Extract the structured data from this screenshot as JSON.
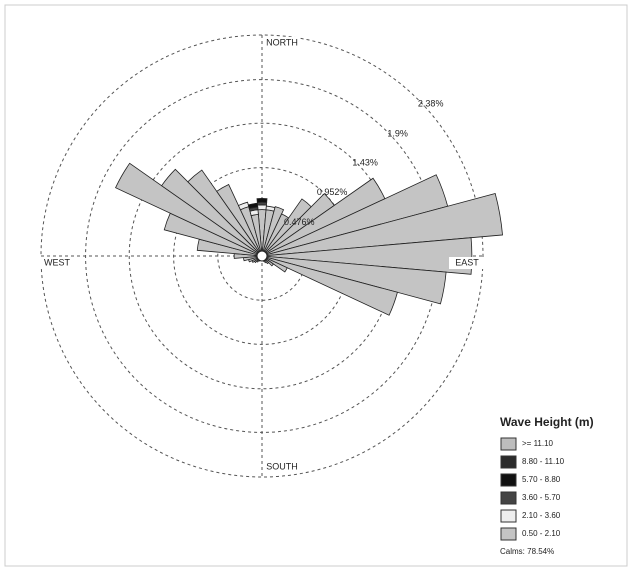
{
  "chart_data": {
    "type": "rose",
    "direction_labels": {
      "north": "NORTH",
      "east": "EAST",
      "south": "SOUTH",
      "west": "WEST"
    },
    "directions": [
      0,
      10,
      20,
      30,
      40,
      50,
      60,
      70,
      80,
      90,
      100,
      110,
      120,
      130,
      140,
      150,
      160,
      170,
      180,
      190,
      200,
      210,
      220,
      230,
      240,
      250,
      260,
      270,
      280,
      290,
      300,
      310,
      320,
      330,
      340,
      350
    ],
    "rlim": [
      0,
      2.38
    ],
    "rticks": [
      {
        "value": 0.476,
        "label": "0.476%"
      },
      {
        "value": 0.952,
        "label": "0.952%"
      },
      {
        "value": 1.43,
        "label": "1.43%"
      },
      {
        "value": 1.9,
        "label": "1.9%"
      },
      {
        "value": 2.38,
        "label": "2.38%"
      }
    ],
    "legend_title": "Wave Height (m)",
    "series": [
      {
        "name": ">= 11.10",
        "color": "#bdbdbd",
        "values": [
          0,
          0,
          0,
          0,
          0,
          0,
          0,
          0,
          0,
          0,
          0,
          0,
          0,
          0,
          0,
          0,
          0,
          0,
          0,
          0,
          0,
          0,
          0,
          0,
          0,
          0,
          0,
          0,
          0,
          0,
          0,
          0,
          0,
          0,
          0,
          0
        ]
      },
      {
        "name": "8.80 - 11.10",
        "color": "#2b2b2b",
        "values": [
          0,
          0,
          0,
          0,
          0,
          0,
          0,
          0,
          0,
          0,
          0,
          0,
          0,
          0,
          0,
          0,
          0,
          0,
          0,
          0,
          0,
          0,
          0,
          0,
          0,
          0,
          0,
          0,
          0,
          0,
          0,
          0,
          0,
          0,
          0,
          0
        ]
      },
      {
        "name": "5.70 - 8.80",
        "color": "#111111",
        "values": [
          0.04,
          0,
          0,
          0,
          0,
          0,
          0,
          0,
          0,
          0,
          0,
          0,
          0,
          0,
          0,
          0,
          0,
          0,
          0,
          0,
          0,
          0,
          0,
          0,
          0,
          0,
          0,
          0,
          0,
          0,
          0,
          0,
          0,
          0,
          0,
          0.04
        ]
      },
      {
        "name": "3.60 - 5.70",
        "color": "#444444",
        "values": [
          0.03,
          0,
          0,
          0,
          0,
          0,
          0,
          0,
          0,
          0,
          0,
          0,
          0,
          0,
          0,
          0,
          0,
          0,
          0,
          0,
          0,
          0,
          0,
          0,
          0,
          0,
          0,
          0,
          0,
          0,
          0,
          0,
          0,
          0,
          0,
          0.03
        ]
      },
      {
        "name": "2.10 - 3.60",
        "color": "#eeeeee",
        "values": [
          0.05,
          0.04,
          0,
          0,
          0,
          0,
          0,
          0,
          0,
          0,
          0,
          0,
          0,
          0,
          0,
          0,
          0,
          0,
          0,
          0,
          0,
          0,
          0,
          0,
          0,
          0,
          0,
          0,
          0,
          0,
          0,
          0,
          0,
          0,
          0.05,
          0.05
        ]
      },
      {
        "name": "0.50 - 2.10",
        "color": "#c4c4c4",
        "values": [
          0.5,
          0.5,
          0.55,
          0.5,
          0.75,
          0.95,
          1.46,
          2.07,
          2.6,
          2.26,
          1.99,
          1.51,
          0.3,
          0.15,
          0.1,
          0.08,
          0.06,
          0.05,
          0.05,
          0.05,
          0.05,
          0.06,
          0.08,
          0.1,
          0.12,
          0.15,
          0.2,
          0.3,
          0.7,
          1.09,
          1.74,
          1.32,
          1.13,
          0.85,
          0.55,
          0.45
        ]
      }
    ],
    "calms_label": "Calms: 78.54%"
  }
}
